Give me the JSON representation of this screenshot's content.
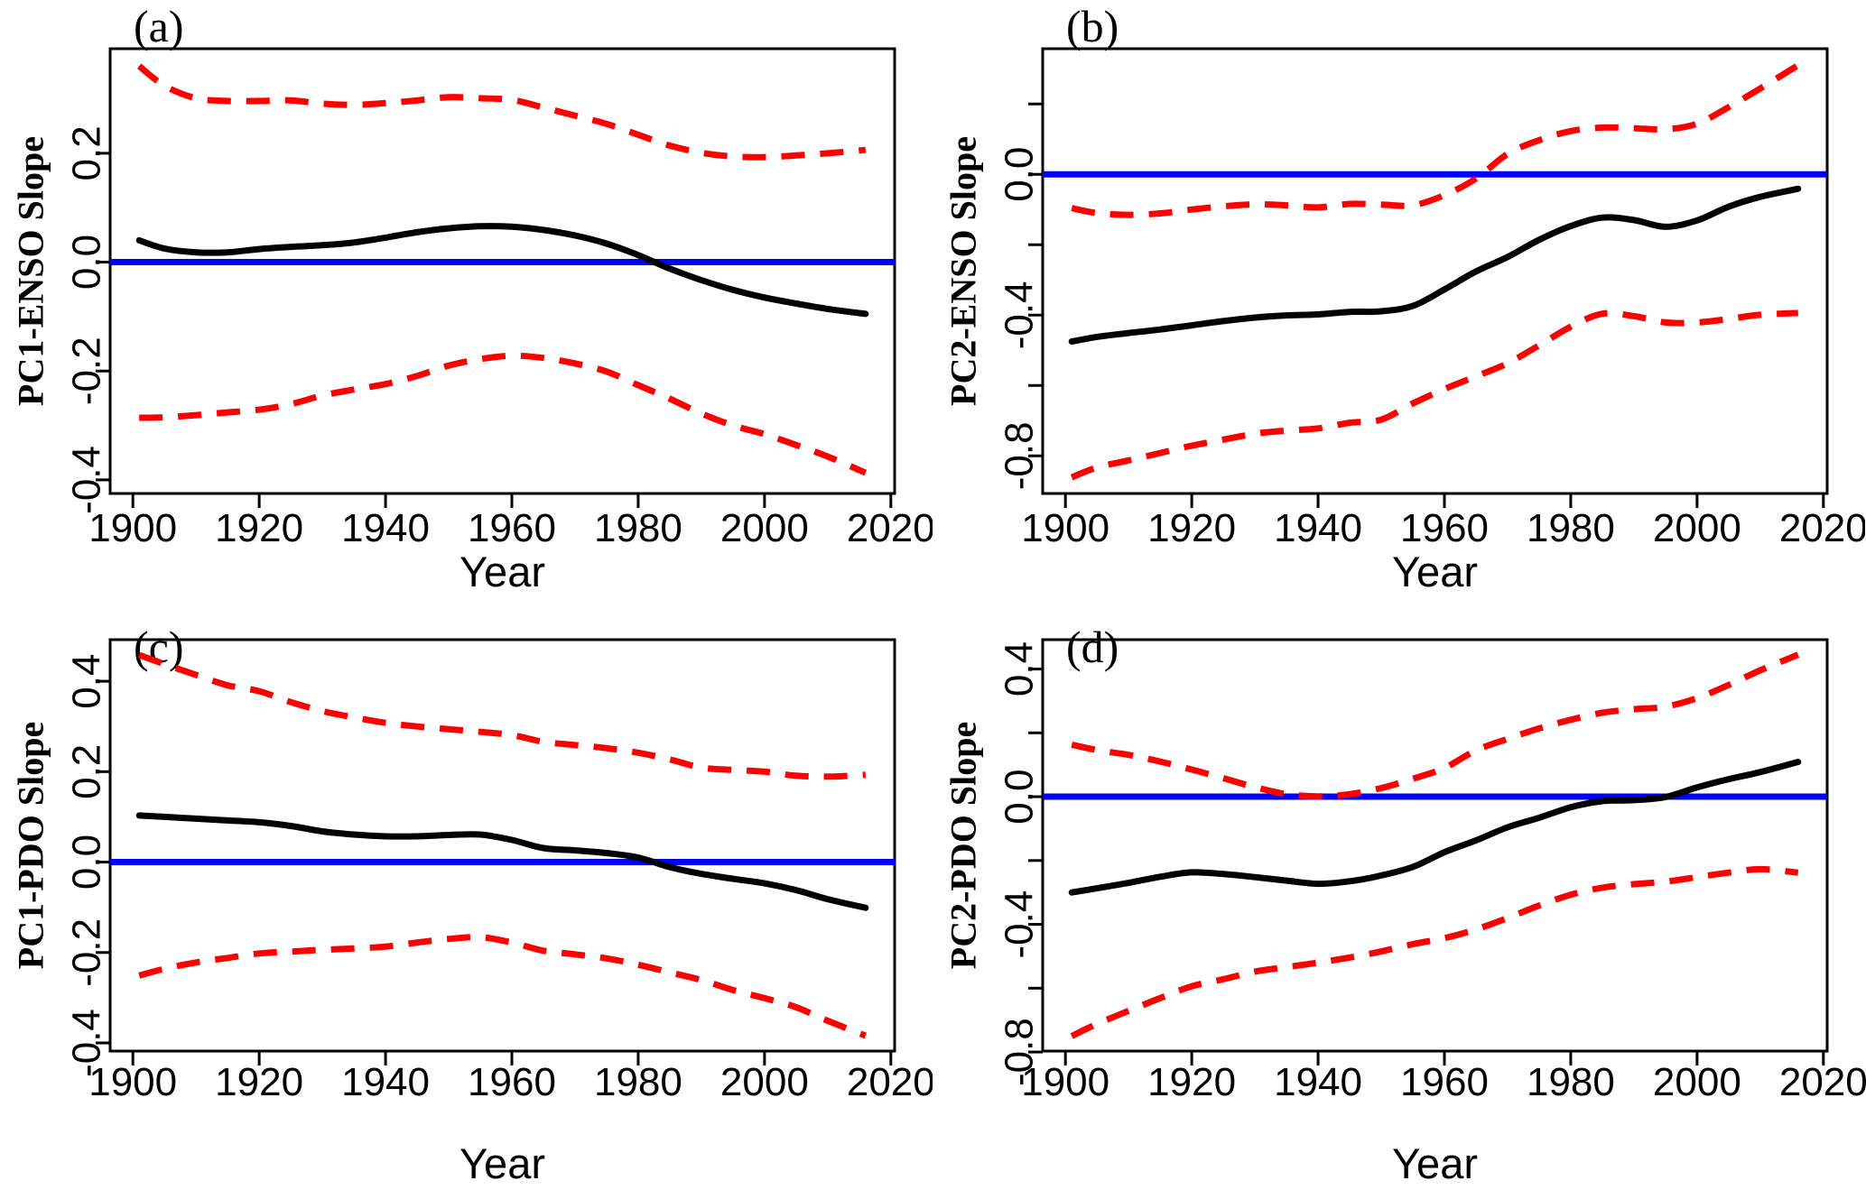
{
  "figure": {
    "background": "#ffffff",
    "axis_color": "#000000",
    "estimate_color": "#000000",
    "ci_color": "#ff0000",
    "zero_line_color": "#0000ff"
  },
  "chart_data": [
    {
      "id": "a",
      "type": "line",
      "panel_label": "(a)",
      "xlabel": "Year",
      "ylabel": "PC1-ENSO Slope",
      "grid": false,
      "legend": "none",
      "xlim": [
        1896.4,
        2020.6
      ],
      "ylim": [
        -0.425,
        0.392
      ],
      "xticks": [
        1900,
        1920,
        1940,
        1960,
        1980,
        2000,
        2020
      ],
      "yticks": [
        {
          "v": 0.2,
          "label": "0.2"
        },
        {
          "v": 0.0,
          "label": "0.0"
        },
        {
          "v": -0.2,
          "label": "-0.2"
        },
        {
          "v": -0.4,
          "label": "-0.4"
        }
      ],
      "zero_line": 0.0,
      "x": [
        1901,
        1905,
        1910,
        1915,
        1920,
        1925,
        1930,
        1935,
        1940,
        1945,
        1950,
        1955,
        1960,
        1965,
        1970,
        1975,
        1980,
        1985,
        1990,
        1995,
        2000,
        2005,
        2010,
        2016
      ],
      "series": [
        {
          "name": "upper-confidence-bound",
          "style": "dashed",
          "values": [
            0.36,
            0.324,
            0.301,
            0.296,
            0.296,
            0.297,
            0.291,
            0.289,
            0.292,
            0.297,
            0.303,
            0.301,
            0.298,
            0.284,
            0.269,
            0.254,
            0.234,
            0.214,
            0.201,
            0.194,
            0.193,
            0.196,
            0.2,
            0.206
          ]
        },
        {
          "name": "lower-confidence-bound",
          "style": "dashed",
          "values": [
            -0.286,
            -0.285,
            -0.281,
            -0.276,
            -0.271,
            -0.261,
            -0.245,
            -0.234,
            -0.224,
            -0.209,
            -0.19,
            -0.178,
            -0.172,
            -0.176,
            -0.186,
            -0.201,
            -0.226,
            -0.251,
            -0.278,
            -0.3,
            -0.316,
            -0.336,
            -0.357,
            -0.387
          ]
        },
        {
          "name": "slope-estimate",
          "style": "solid",
          "values": [
            0.04,
            0.025,
            0.018,
            0.018,
            0.024,
            0.028,
            0.031,
            0.036,
            0.045,
            0.055,
            0.062,
            0.066,
            0.065,
            0.059,
            0.049,
            0.034,
            0.013,
            -0.012,
            -0.033,
            -0.051,
            -0.065,
            -0.076,
            -0.086,
            -0.095
          ]
        }
      ]
    },
    {
      "id": "b",
      "type": "line",
      "panel_label": "(b)",
      "xlabel": "Year",
      "ylabel": "PC2-ENSO Slope",
      "grid": false,
      "legend": "none",
      "xlim": [
        1896.4,
        2020.6
      ],
      "ylim": [
        -0.907,
        0.357
      ],
      "xticks": [
        1900,
        1920,
        1940,
        1960,
        1980,
        2000,
        2020
      ],
      "yticks": [
        {
          "v": 0.2,
          "label": ""
        },
        {
          "v": 0.0,
          "label": "0.0"
        },
        {
          "v": -0.2,
          "label": ""
        },
        {
          "v": -0.4,
          "label": "-0.4"
        },
        {
          "v": -0.6,
          "label": ""
        },
        {
          "v": -0.8,
          "label": "-0.8"
        }
      ],
      "zero_line": 0.0,
      "x": [
        1901,
        1905,
        1910,
        1915,
        1920,
        1925,
        1930,
        1935,
        1940,
        1945,
        1950,
        1955,
        1960,
        1965,
        1970,
        1975,
        1980,
        1985,
        1990,
        1995,
        2000,
        2005,
        2010,
        2016
      ],
      "series": [
        {
          "name": "upper-confidence-bound",
          "style": "dashed",
          "values": [
            -0.096,
            -0.11,
            -0.115,
            -0.111,
            -0.1,
            -0.091,
            -0.085,
            -0.088,
            -0.094,
            -0.084,
            -0.086,
            -0.088,
            -0.059,
            -0.012,
            0.058,
            0.097,
            0.123,
            0.133,
            0.131,
            0.128,
            0.144,
            0.191,
            0.244,
            0.31
          ]
        },
        {
          "name": "lower-confidence-bound",
          "style": "dashed",
          "values": [
            -0.861,
            -0.833,
            -0.813,
            -0.792,
            -0.771,
            -0.754,
            -0.737,
            -0.728,
            -0.722,
            -0.706,
            -0.697,
            -0.651,
            -0.61,
            -0.574,
            -0.537,
            -0.486,
            -0.433,
            -0.396,
            -0.403,
            -0.421,
            -0.421,
            -0.411,
            -0.399,
            -0.394
          ]
        },
        {
          "name": "slope-estimate",
          "style": "solid",
          "values": [
            -0.475,
            -0.462,
            -0.451,
            -0.441,
            -0.429,
            -0.417,
            -0.407,
            -0.401,
            -0.398,
            -0.391,
            -0.389,
            -0.374,
            -0.327,
            -0.276,
            -0.235,
            -0.186,
            -0.147,
            -0.123,
            -0.13,
            -0.149,
            -0.131,
            -0.092,
            -0.064,
            -0.041
          ]
        }
      ]
    },
    {
      "id": "c",
      "type": "line",
      "panel_label": "(c)",
      "xlabel": "Year",
      "ylabel": "PC1-PDO Slope",
      "grid": false,
      "legend": "none",
      "xlim": [
        1896.4,
        2020.6
      ],
      "ylim": [
        -0.418,
        0.492
      ],
      "xticks": [
        1900,
        1920,
        1940,
        1960,
        1980,
        2000,
        2020
      ],
      "yticks": [
        {
          "v": 0.4,
          "label": "0.4"
        },
        {
          "v": 0.2,
          "label": "0.2"
        },
        {
          "v": 0.0,
          "label": "0.0"
        },
        {
          "v": -0.2,
          "label": "-0.2"
        },
        {
          "v": -0.4,
          "label": "-0.4"
        }
      ],
      "zero_line": 0.0,
      "x": [
        1901,
        1905,
        1910,
        1915,
        1920,
        1925,
        1930,
        1935,
        1940,
        1945,
        1950,
        1955,
        1960,
        1965,
        1970,
        1975,
        1980,
        1985,
        1990,
        1995,
        2000,
        2005,
        2010,
        2016
      ],
      "series": [
        {
          "name": "upper-confidence-bound",
          "style": "dashed",
          "values": [
            0.458,
            0.438,
            0.414,
            0.391,
            0.378,
            0.354,
            0.334,
            0.32,
            0.308,
            0.3,
            0.294,
            0.288,
            0.281,
            0.266,
            0.259,
            0.252,
            0.242,
            0.227,
            0.209,
            0.204,
            0.2,
            0.191,
            0.189,
            0.193
          ]
        },
        {
          "name": "lower-confidence-bound",
          "style": "dashed",
          "values": [
            -0.251,
            -0.236,
            -0.222,
            -0.212,
            -0.202,
            -0.198,
            -0.194,
            -0.191,
            -0.187,
            -0.178,
            -0.17,
            -0.166,
            -0.178,
            -0.196,
            -0.204,
            -0.213,
            -0.227,
            -0.244,
            -0.261,
            -0.283,
            -0.301,
            -0.321,
            -0.351,
            -0.384
          ]
        },
        {
          "name": "slope-estimate",
          "style": "solid",
          "values": [
            0.103,
            0.1,
            0.096,
            0.092,
            0.088,
            0.08,
            0.068,
            0.061,
            0.057,
            0.057,
            0.06,
            0.061,
            0.049,
            0.031,
            0.026,
            0.02,
            0.01,
            -0.011,
            -0.026,
            -0.037,
            -0.047,
            -0.062,
            -0.082,
            -0.101
          ]
        }
      ]
    },
    {
      "id": "d",
      "type": "line",
      "panel_label": "(d)",
      "xlabel": "Year",
      "ylabel": "PC2-PDO Slope",
      "grid": false,
      "legend": "none",
      "xlim": [
        1896.4,
        2020.6
      ],
      "ylim": [
        -0.797,
        0.492
      ],
      "xticks": [
        1900,
        1920,
        1940,
        1960,
        1980,
        2000,
        2020
      ],
      "yticks": [
        {
          "v": 0.4,
          "label": "0.4"
        },
        {
          "v": 0.2,
          "label": ""
        },
        {
          "v": 0.0,
          "label": "0.0"
        },
        {
          "v": -0.2,
          "label": ""
        },
        {
          "v": -0.4,
          "label": "-0.4"
        },
        {
          "v": -0.6,
          "label": ""
        },
        {
          "v": -0.8,
          "label": "-0.8"
        }
      ],
      "zero_line": 0.0,
      "x": [
        1901,
        1905,
        1910,
        1915,
        1920,
        1925,
        1930,
        1935,
        1940,
        1945,
        1950,
        1955,
        1960,
        1965,
        1970,
        1975,
        1980,
        1985,
        1990,
        1995,
        2000,
        2005,
        2010,
        2016
      ],
      "series": [
        {
          "name": "upper-confidence-bound",
          "style": "dashed",
          "values": [
            0.163,
            0.146,
            0.131,
            0.11,
            0.085,
            0.058,
            0.03,
            0.008,
            0.001,
            0.008,
            0.027,
            0.056,
            0.09,
            0.145,
            0.181,
            0.214,
            0.241,
            0.263,
            0.274,
            0.282,
            0.309,
            0.35,
            0.396,
            0.445
          ]
        },
        {
          "name": "lower-confidence-bound",
          "style": "dashed",
          "values": [
            -0.75,
            -0.712,
            -0.671,
            -0.631,
            -0.594,
            -0.572,
            -0.548,
            -0.534,
            -0.52,
            -0.504,
            -0.485,
            -0.462,
            -0.443,
            -0.416,
            -0.38,
            -0.341,
            -0.307,
            -0.285,
            -0.274,
            -0.266,
            -0.252,
            -0.238,
            -0.227,
            -0.238
          ]
        },
        {
          "name": "slope-estimate",
          "style": "solid",
          "values": [
            -0.3,
            -0.287,
            -0.27,
            -0.251,
            -0.237,
            -0.242,
            -0.252,
            -0.263,
            -0.273,
            -0.265,
            -0.247,
            -0.22,
            -0.174,
            -0.137,
            -0.096,
            -0.066,
            -0.033,
            -0.014,
            -0.011,
            -0.001,
            0.029,
            0.055,
            0.077,
            0.109
          ]
        }
      ]
    }
  ]
}
